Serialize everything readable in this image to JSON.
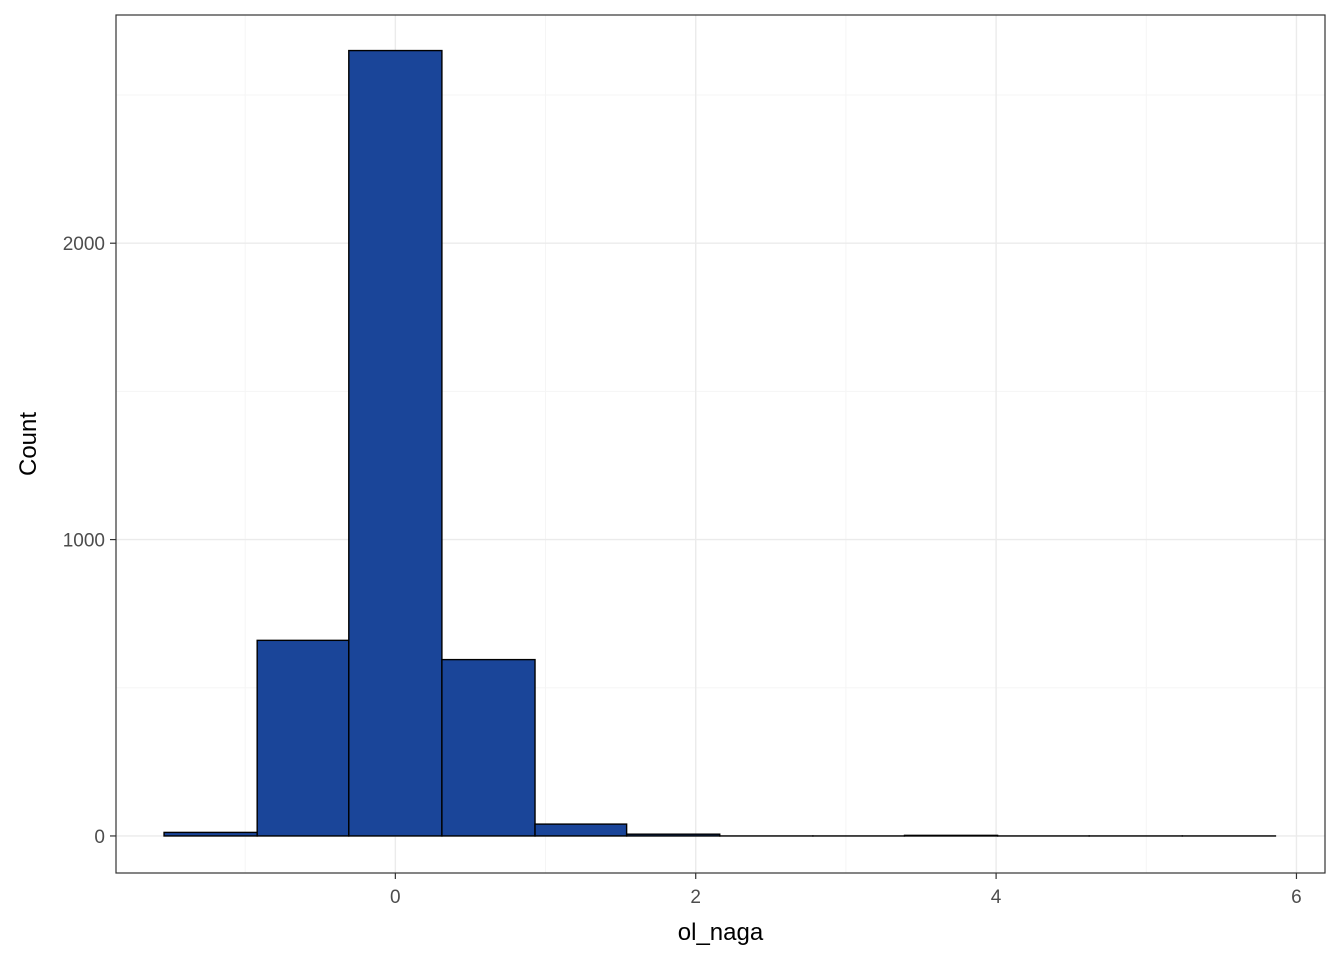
{
  "chart_data": {
    "type": "bar",
    "subtype": "histogram",
    "title": "",
    "xlabel": "ol_naga",
    "ylabel": "Count",
    "xlim": [
      -1.86,
      6.19
    ],
    "ylim": [
      -125,
      2770
    ],
    "x_ticks": [
      0,
      2,
      4,
      6
    ],
    "x_tick_labels": [
      "0",
      "2",
      "4",
      "6"
    ],
    "y_ticks": [
      0,
      1000,
      2000
    ],
    "y_tick_labels": [
      "0",
      "1000",
      "2000"
    ],
    "x_minor_ticks": [
      -1,
      1,
      3,
      5
    ],
    "y_minor_ticks": [
      500,
      1500,
      2500
    ],
    "grid": true,
    "legend": "none",
    "bins": [
      {
        "x0": -1.54,
        "x1": -0.92,
        "count": 12
      },
      {
        "x0": -0.92,
        "x1": -0.31,
        "count": 660
      },
      {
        "x0": -0.31,
        "x1": 0.31,
        "count": 2650
      },
      {
        "x0": 0.31,
        "x1": 0.93,
        "count": 595
      },
      {
        "x0": 0.93,
        "x1": 1.54,
        "count": 40
      },
      {
        "x0": 1.54,
        "x1": 2.16,
        "count": 6
      },
      {
        "x0": 2.16,
        "x1": 2.78,
        "count": 0
      },
      {
        "x0": 2.78,
        "x1": 3.39,
        "count": 0
      },
      {
        "x0": 3.39,
        "x1": 4.01,
        "count": 2
      },
      {
        "x0": 4.01,
        "x1": 4.62,
        "count": 0
      },
      {
        "x0": 4.62,
        "x1": 5.24,
        "count": 0
      },
      {
        "x0": 5.24,
        "x1": 5.86,
        "count": 0
      }
    ],
    "colors": {
      "bar_fill": "#1a4599",
      "bar_stroke": "#000000",
      "grid_major": "#ebebeb",
      "grid_minor": "#f5f5f5",
      "panel_border": "#333333"
    }
  }
}
